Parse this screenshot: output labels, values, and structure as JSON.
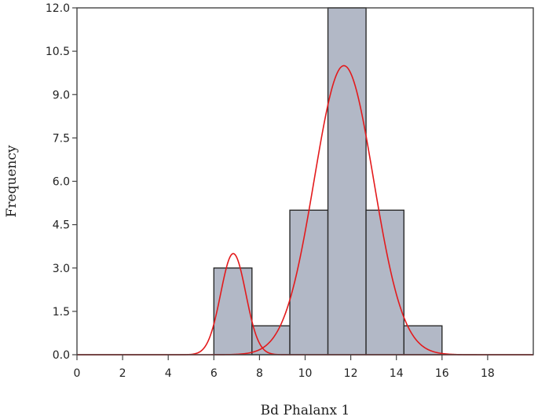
{
  "chart_data": {
    "type": "bar",
    "xlabel": "Bd Phalanx 1",
    "ylabel": "Frequency",
    "xlim": [
      0,
      20
    ],
    "ylim": [
      0,
      12
    ],
    "x_ticks": [
      "0",
      "2",
      "4",
      "6",
      "8",
      "10",
      "12",
      "14",
      "16",
      "18"
    ],
    "y_ticks": [
      "0.0",
      "1.5",
      "3.0",
      "4.5",
      "6.0",
      "7.5",
      "9.0",
      "10.5",
      "12.0"
    ],
    "bins": [
      {
        "start": 6.0,
        "end": 7.67,
        "count": 3
      },
      {
        "start": 7.67,
        "end": 9.33,
        "count": 1
      },
      {
        "start": 9.33,
        "end": 11.0,
        "count": 5
      },
      {
        "start": 11.0,
        "end": 12.67,
        "count": 12
      },
      {
        "start": 12.67,
        "end": 14.33,
        "count": 5
      },
      {
        "start": 14.33,
        "end": 16.0,
        "count": 1
      }
    ],
    "fitted_curves": [
      {
        "type": "normal",
        "mean": 6.85,
        "sd": 0.55,
        "peak": 3.5
      },
      {
        "type": "normal",
        "mean": 11.7,
        "sd": 1.3,
        "peak": 10.0
      }
    ],
    "bar_color": "#b2b8c6",
    "curve_color": "#e31a1c",
    "grid": false,
    "legend": "none"
  }
}
